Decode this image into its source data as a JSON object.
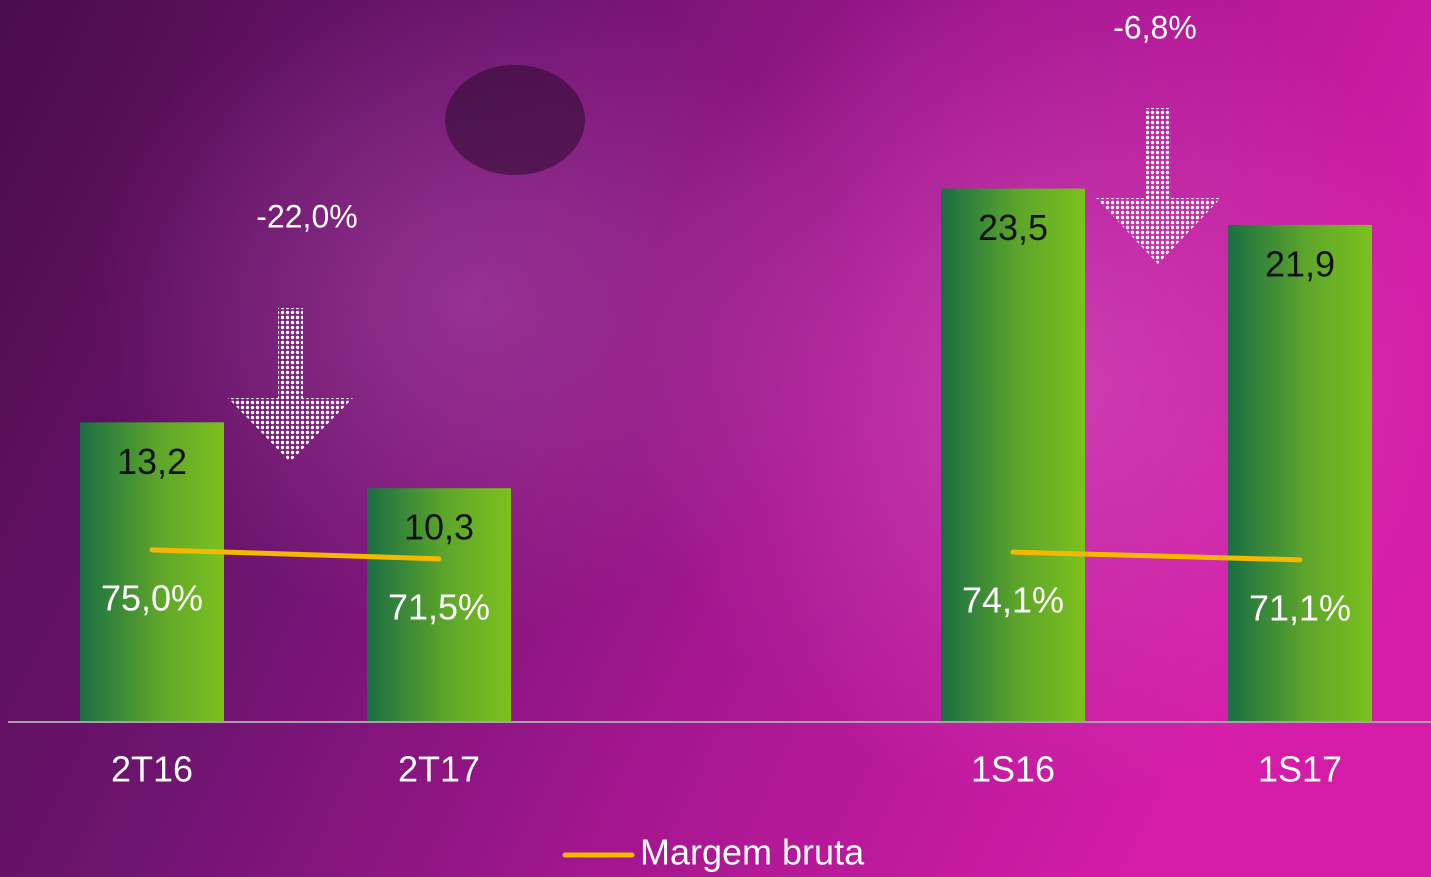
{
  "chart_data": {
    "type": "bar",
    "categories": [
      "2T16",
      "2T17",
      null,
      "1S16",
      "1S17"
    ],
    "series": [
      {
        "color": "#6fb823",
        "values": [
          13.2,
          10.3,
          null,
          23.5,
          21.9
        ],
        "value_labels": [
          "13,2",
          "10,3",
          null,
          "23,5",
          "21,9"
        ]
      },
      {
        "name": "Margem bruta",
        "type": "line",
        "axis": "y2",
        "color": "#f5b800",
        "values": [
          75.0,
          71.5,
          null,
          74.1,
          71.1
        ],
        "value_labels": [
          "75,0%",
          "71,5%",
          null,
          "74,1%",
          "71,1%"
        ]
      }
    ],
    "ylim": [
      0,
      30
    ],
    "y2lim": [
      8,
      273
    ],
    "annotations": [
      "-22,0%",
      "-6,8%"
    ],
    "legend": "bottom"
  }
}
